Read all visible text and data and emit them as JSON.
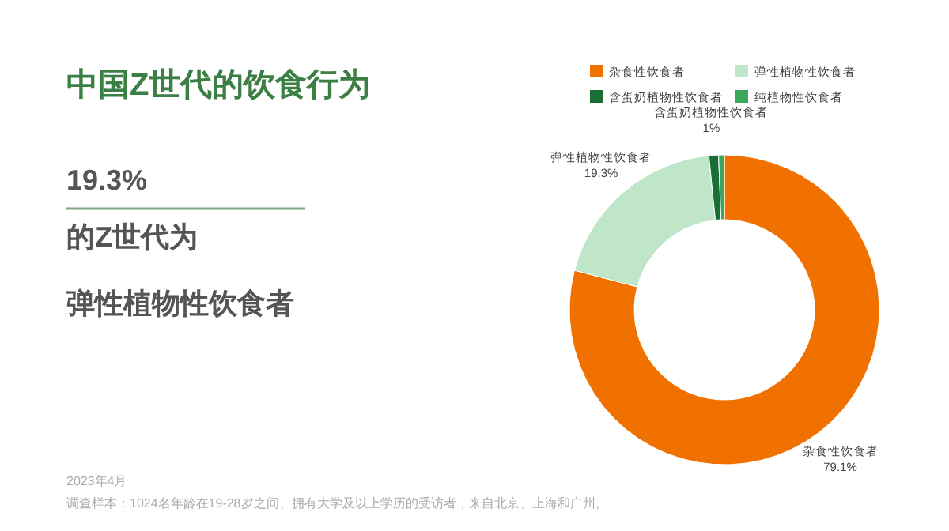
{
  "chart_data": {
    "type": "donut",
    "title": "中国Z世代的饮食行为",
    "categories": [
      "杂食性饮食者",
      "弹性植物性饮食者",
      "含蛋奶植物性饮食者",
      "纯植物性饮食者"
    ],
    "values": [
      79.1,
      19.3,
      1,
      0.6
    ],
    "colors": [
      "#f07100",
      "#bfe6c8",
      "#1b6e33",
      "#3ba75a"
    ],
    "value_labels": [
      "79.1%",
      "19.3%",
      "1%",
      null
    ],
    "legend": "top right",
    "annotations": [
      "19.3%",
      "的Z世代为",
      "弹性植物性饮食者",
      "2023年4月",
      "调查样本：1024名年龄在19-28岁之间、拥有大学及以上学历的受访者，来自北京、上海和广州。"
    ]
  }
}
